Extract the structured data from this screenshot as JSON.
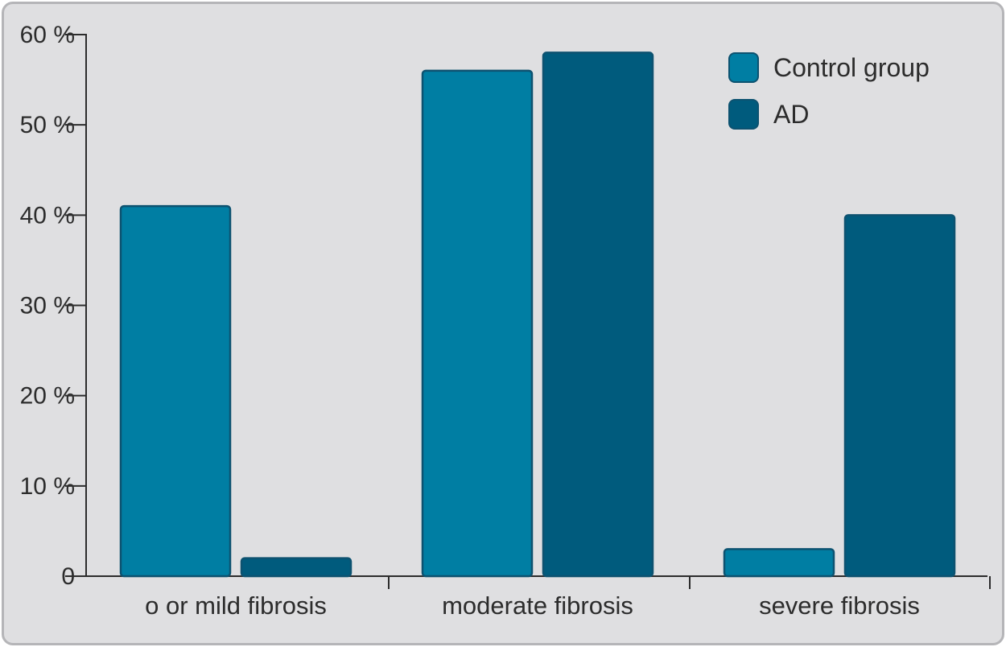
{
  "chart_data": {
    "type": "bar",
    "categories": [
      "o or mild fibrosis",
      "moderate fibrosis",
      "severe fibrosis"
    ],
    "series": [
      {
        "name": "Control group",
        "values": [
          41,
          56,
          3
        ],
        "color": "#007ea3"
      },
      {
        "name": "AD",
        "values": [
          2,
          58,
          40
        ],
        "color": "#005b7d"
      }
    ],
    "yticks": [
      {
        "value": 0,
        "label": "0"
      },
      {
        "value": 10,
        "label": "10 %"
      },
      {
        "value": 20,
        "label": "20 %"
      },
      {
        "value": 30,
        "label": "30 %"
      },
      {
        "value": 40,
        "label": "40 %"
      },
      {
        "value": 50,
        "label": "50 %"
      },
      {
        "value": 60,
        "label": "60 %"
      }
    ],
    "ylim": [
      0,
      60
    ],
    "grid": false,
    "legend_position": "top-right",
    "bar_edge_color": "#0d5270",
    "axis_color": "#2c2c2c",
    "background_color": "#dfdfe1"
  }
}
